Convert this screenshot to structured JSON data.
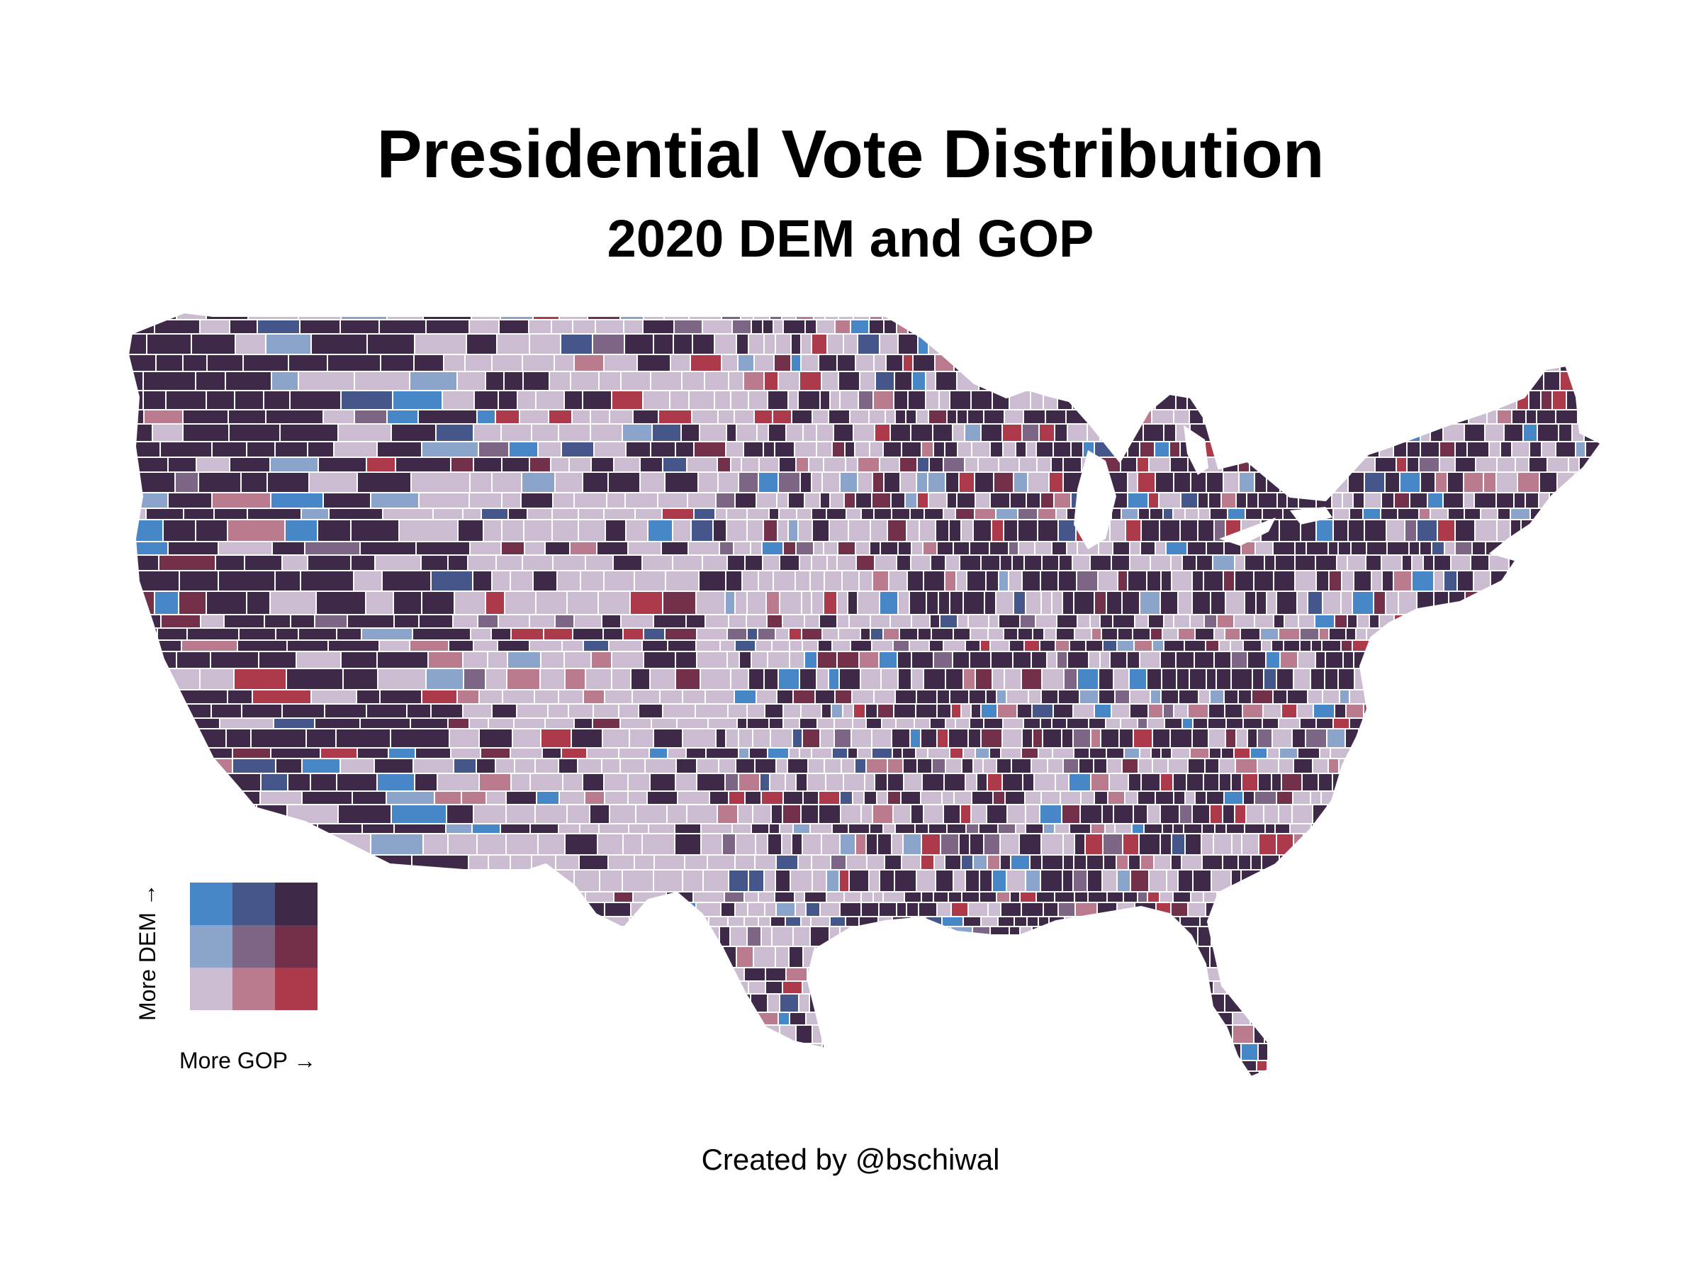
{
  "title": "Presidential Vote Distribution",
  "subtitle": "2020 DEM and GOP",
  "credit": "Created by @bschiwal",
  "legend": {
    "y_label": "More DEM →",
    "x_label": "More GOP →",
    "colors": [
      [
        "#cbbcd1",
        "#b97b8d",
        "#ad3a4b"
      ],
      [
        "#8ba4cc",
        "#7d6585",
        "#73304a"
      ],
      [
        "#4786c7",
        "#45578a",
        "#3e2a48"
      ]
    ]
  },
  "map": {
    "region": "Contiguous United States",
    "unit": "county",
    "border_color": "#ffffff",
    "lake_color": "#ffffff"
  }
}
